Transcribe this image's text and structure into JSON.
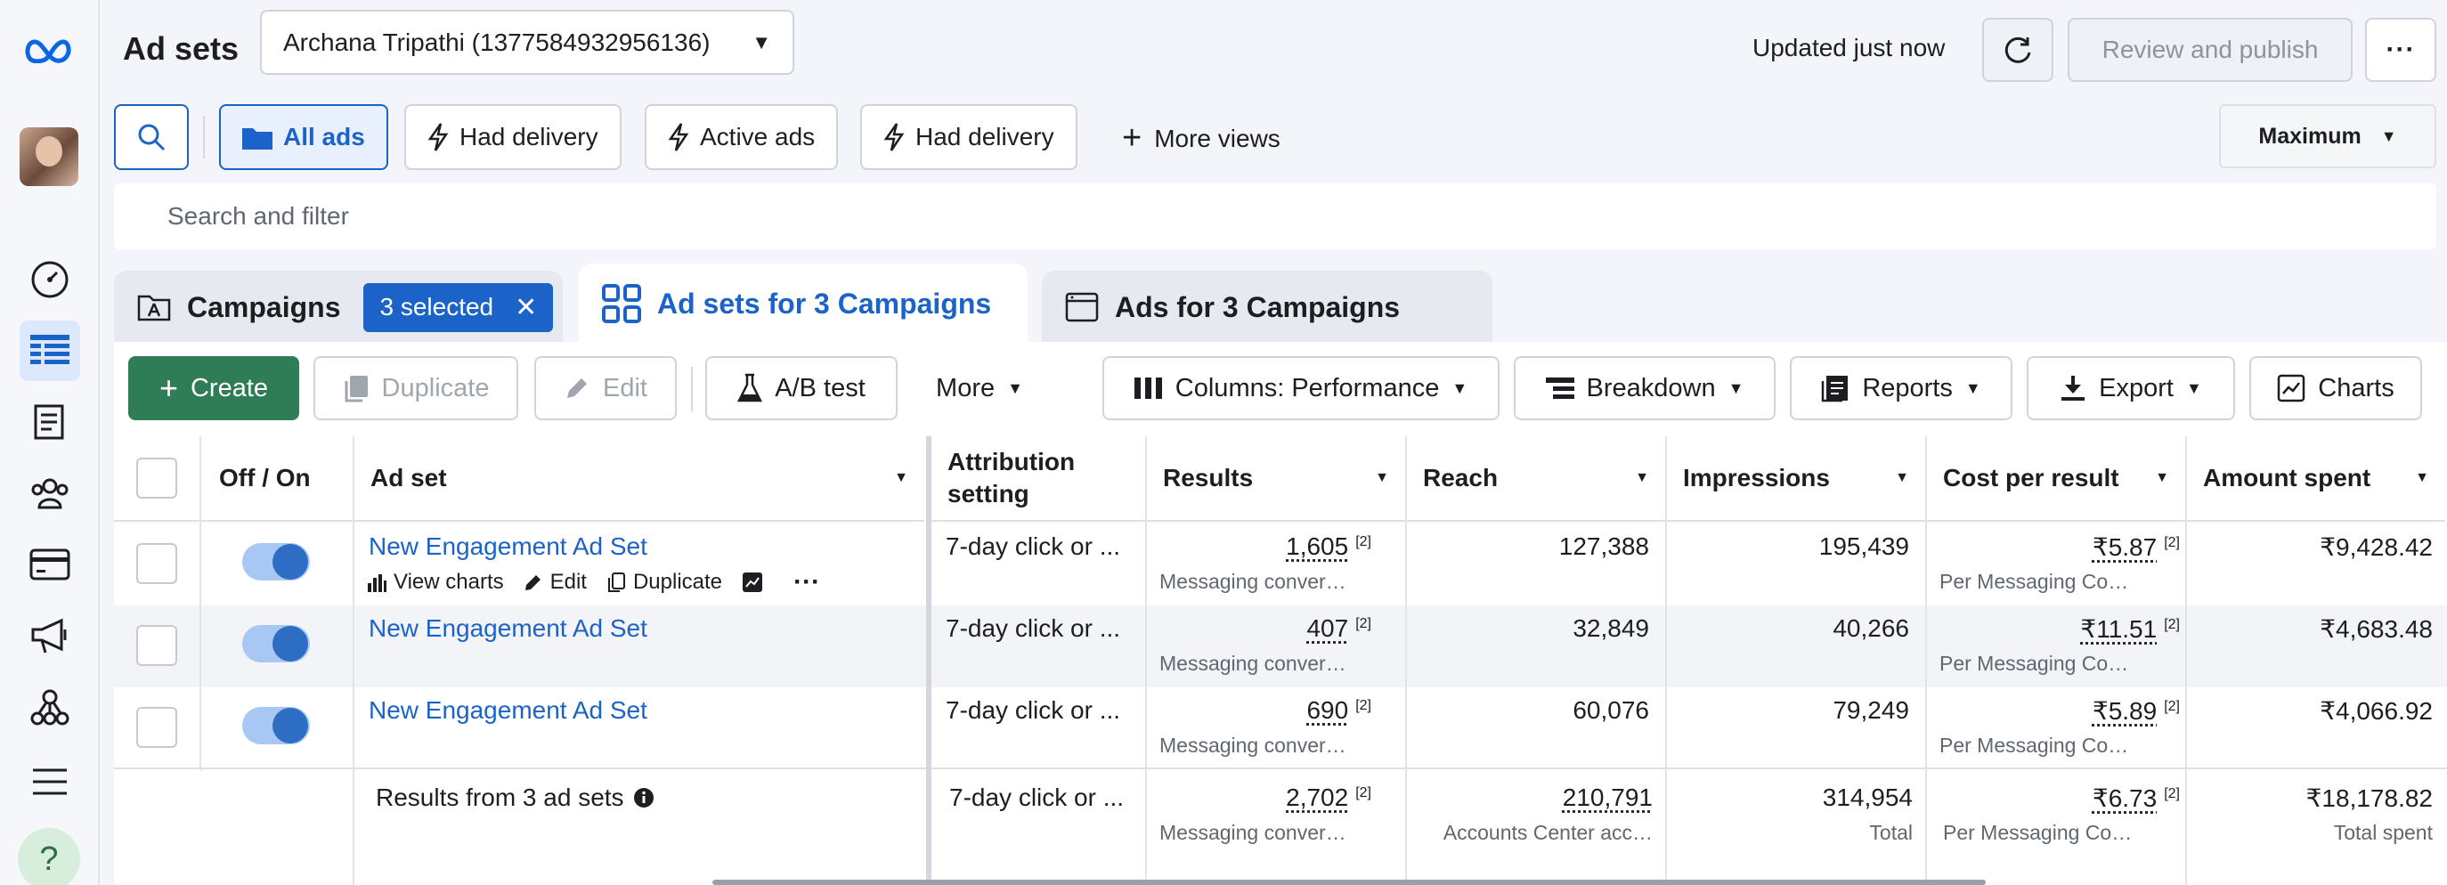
{
  "header": {
    "title": "Ad sets",
    "account": "Archana Tripathi (1377584932956136)",
    "updated": "Updated just now",
    "publish": "Review and publish"
  },
  "views": {
    "all_ads": "All ads",
    "had_delivery_1": "Had delivery",
    "active_ads": "Active ads",
    "had_delivery_2": "Had delivery",
    "more_views": "More views",
    "maximum": "Maximum"
  },
  "search": {
    "placeholder": "Search and filter"
  },
  "tabs": {
    "campaigns": "Campaigns",
    "selected": "3 selected",
    "adsets": "Ad sets for 3 Campaigns",
    "ads": "Ads for 3 Campaigns"
  },
  "toolbar": {
    "create": "Create",
    "duplicate": "Duplicate",
    "edit": "Edit",
    "ab_test": "A/B test",
    "more": "More",
    "columns": "Columns: Performance",
    "breakdown": "Breakdown",
    "reports": "Reports",
    "export": "Export",
    "charts": "Charts"
  },
  "table": {
    "headers": {
      "off_on": "Off / On",
      "adset": "Ad set",
      "attribution": "Attribution setting",
      "results": "Results",
      "reach": "Reach",
      "impressions": "Impressions",
      "cpr": "Cost per result",
      "spent": "Amount spent"
    },
    "row_actions": {
      "view_charts": "View charts",
      "edit": "Edit",
      "duplicate": "Duplicate"
    },
    "rows": [
      {
        "name": "New Engagement Ad Set",
        "attribution": "7-day click or ...",
        "results": "1,605",
        "results_sup": "[2]",
        "results_sub": "Messaging conver…",
        "reach": "127,388",
        "impressions": "195,439",
        "cpr": "₹5.87",
        "cpr_sup": "[2]",
        "cpr_sub": "Per Messaging Co…",
        "spent": "₹9,428.42"
      },
      {
        "name": "New Engagement Ad Set",
        "attribution": "7-day click or ...",
        "results": "407",
        "results_sup": "[2]",
        "results_sub": "Messaging conver…",
        "reach": "32,849",
        "impressions": "40,266",
        "cpr": "₹11.51",
        "cpr_sup": "[2]",
        "cpr_sub": "Per Messaging Co…",
        "spent": "₹4,683.48"
      },
      {
        "name": "New Engagement Ad Set",
        "attribution": "7-day click or ...",
        "results": "690",
        "results_sup": "[2]",
        "results_sub": "Messaging conver…",
        "reach": "60,076",
        "impressions": "79,249",
        "cpr": "₹5.89",
        "cpr_sup": "[2]",
        "cpr_sub": "Per Messaging Co…",
        "spent": "₹4,066.92"
      }
    ],
    "summary": {
      "label": "Results from 3 ad sets",
      "attribution": "7-day click or ...",
      "results": "2,702",
      "results_sup": "[2]",
      "results_sub": "Messaging conver…",
      "reach": "210,791",
      "reach_sub": "Accounts Center acc…",
      "impressions": "314,954",
      "impressions_sub": "Total",
      "cpr": "₹6.73",
      "cpr_sup": "[2]",
      "cpr_sub": "Per Messaging Co…",
      "spent": "₹18,178.82",
      "spent_sub": "Total spent"
    }
  },
  "colors": {
    "brand_blue": "#1b63c9",
    "create_green": "#2f7d57",
    "toggle_on": "#2d6dc4"
  }
}
